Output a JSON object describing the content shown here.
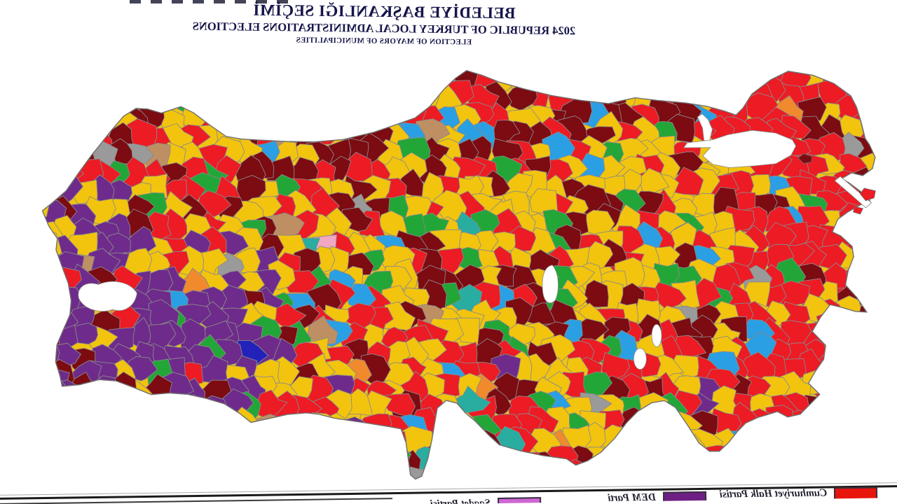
{
  "header": {
    "title_tr": "BELEDİYE BAŞKANLIĞI SEÇİMİ",
    "title_en": "2024 REPUBLIC OF TURKEY LOCAL ADMINISTRATIONS ELECTIONS",
    "subtitle_en": "ELECTION OF MAYORS OF MUNICIPALITIES",
    "text_color": "#15154a"
  },
  "map": {
    "mirrored": true,
    "seed": 20240331,
    "cell_size": 26,
    "border_color": "#8a8a8a",
    "outline_color": "#6f6f6f",
    "water_color": "#ffffff",
    "palette": {
      "akp_yellow": "#F2C40E",
      "chp_red": "#EC1B24",
      "mhp_maroon": "#7C0B12",
      "dem_purple": "#6E2B8B",
      "green": "#22A637",
      "blue": "#2B9FE3",
      "teal": "#28ADA0",
      "orange": "#F08A2D",
      "tan": "#BE8F63",
      "gray": "#9A9A9A",
      "pink": "#F2A7C3",
      "navy": "#2222BB"
    },
    "regions": [
      {
        "name": "southeast",
        "bounds": [
          0.7,
          1.02,
          0.42,
          1.02
        ],
        "weights": {
          "dem_purple": 58,
          "akp_yellow": 17,
          "mhp_maroon": 7,
          "chp_red": 6,
          "green": 4,
          "tan": 2,
          "blue": 1.5,
          "navy": 1,
          "gray": 1,
          "orange": 0.8,
          "teal": 0.5
        }
      },
      {
        "name": "fareast",
        "bounds": [
          0.88,
          1.02,
          0.28,
          1.02
        ],
        "weights": {
          "dem_purple": 55,
          "akp_yellow": 18,
          "mhp_maroon": 8,
          "chp_red": 8,
          "green": 5,
          "tan": 2,
          "blue": 2,
          "gray": 2
        }
      },
      {
        "name": "northeast",
        "bounds": [
          0.74,
          1.02,
          -0.02,
          0.42
        ],
        "weights": {
          "chp_red": 28,
          "mhp_maroon": 24,
          "akp_yellow": 26,
          "green": 9,
          "blue": 4,
          "gray": 3,
          "tan": 3,
          "orange": 1.5,
          "teal": 1
        }
      },
      {
        "name": "west",
        "bounds": [
          -0.02,
          0.18,
          -0.02,
          1.02
        ],
        "weights": {
          "chp_red": 58,
          "akp_yellow": 22,
          "mhp_maroon": 9,
          "blue": 5,
          "green": 2.5,
          "gray": 1.5,
          "orange": 1,
          "pink": 0.5
        }
      },
      {
        "name": "northcoast",
        "bounds": [
          0.18,
          0.74,
          -0.02,
          0.2
        ],
        "weights": {
          "akp_yellow": 30,
          "chp_red": 27,
          "mhp_maroon": 24,
          "blue": 6,
          "tan": 4,
          "gray": 3,
          "green": 2.5,
          "orange": 1.5,
          "pink": 1.5
        }
      },
      {
        "name": "south",
        "bounds": [
          0.18,
          0.7,
          0.7,
          1.02
        ],
        "weights": {
          "chp_red": 36,
          "akp_yellow": 31,
          "mhp_maroon": 17,
          "green": 6,
          "blue": 3.5,
          "teal": 2,
          "orange": 1.5,
          "dem_purple": 1.5,
          "gray": 1,
          "navy": 0.5
        }
      },
      {
        "name": "central",
        "bounds": [
          -0.02,
          1.02,
          -0.02,
          1.02
        ],
        "weights": {
          "akp_yellow": 44,
          "mhp_maroon": 21,
          "chp_red": 18.5,
          "green": 9,
          "blue": 3.5,
          "tan": 2,
          "gray": 1,
          "pink": 0.5,
          "teal": 0.5
        }
      }
    ]
  },
  "legend": {
    "entries": [
      {
        "label": "Cumhuriyet Halk Partisi",
        "color": "#E8150D"
      },
      {
        "label": "DEM Parti",
        "color": "#6E1F85"
      },
      {
        "label": "Saadet Partisi",
        "color": "#CE66D4"
      }
    ]
  }
}
